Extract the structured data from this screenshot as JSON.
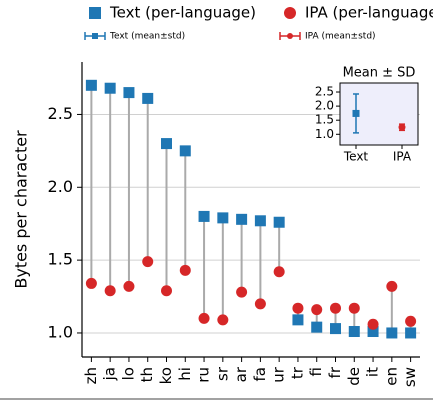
{
  "chart_data": [
    {
      "type": "dumbbell",
      "ylabel": "Bytes per character",
      "categories": [
        "zh",
        "ja",
        "lo",
        "th",
        "ko",
        "hi",
        "ru",
        "sr",
        "ar",
        "fa",
        "ur",
        "tr",
        "fi",
        "fr",
        "de",
        "it",
        "en",
        "sw"
      ],
      "series": [
        {
          "name": "Text (per-language)",
          "color": "#1f77b4",
          "marker": "square",
          "values": [
            2.7,
            2.68,
            2.65,
            2.61,
            2.3,
            2.25,
            1.8,
            1.79,
            1.78,
            1.77,
            1.76,
            1.09,
            1.04,
            1.03,
            1.01,
            1.01,
            1.0,
            1.0
          ]
        },
        {
          "name": "IPA (per-language)",
          "color": "#d62728",
          "marker": "circle",
          "values": [
            1.34,
            1.29,
            1.32,
            1.49,
            1.29,
            1.43,
            1.1,
            1.09,
            1.28,
            1.2,
            1.42,
            1.17,
            1.16,
            1.17,
            1.17,
            1.06,
            1.32,
            1.08
          ]
        }
      ],
      "ylim": [
        0.835,
        2.86
      ],
      "yticks": [
        {
          "value": 1.0,
          "label": "1.0"
        },
        1.5,
        {
          "value": 2.0,
          "label": "2.0"
        },
        2.5
      ],
      "grid": true
    },
    {
      "type": "errorbar",
      "title": "Mean ± SD",
      "categories": [
        "Text",
        "IPA"
      ],
      "series": [
        {
          "name": "Text (mean±std)",
          "color": "#1f77b4",
          "marker": "square",
          "values": [
            1.74,
            null
          ],
          "errors": [
            0.69,
            null
          ]
        },
        {
          "name": "IPA (mean±std)",
          "color": "#d62728",
          "marker": "circle",
          "values": [
            null,
            1.25
          ],
          "errors": [
            null,
            0.11
          ]
        }
      ],
      "ylim": [
        0.62,
        2.82
      ],
      "yticks": [
        {
          "value": 1.0,
          "label": "1.0"
        },
        1.5,
        {
          "value": 2.0,
          "label": "2.0"
        },
        2.5
      ]
    }
  ]
}
